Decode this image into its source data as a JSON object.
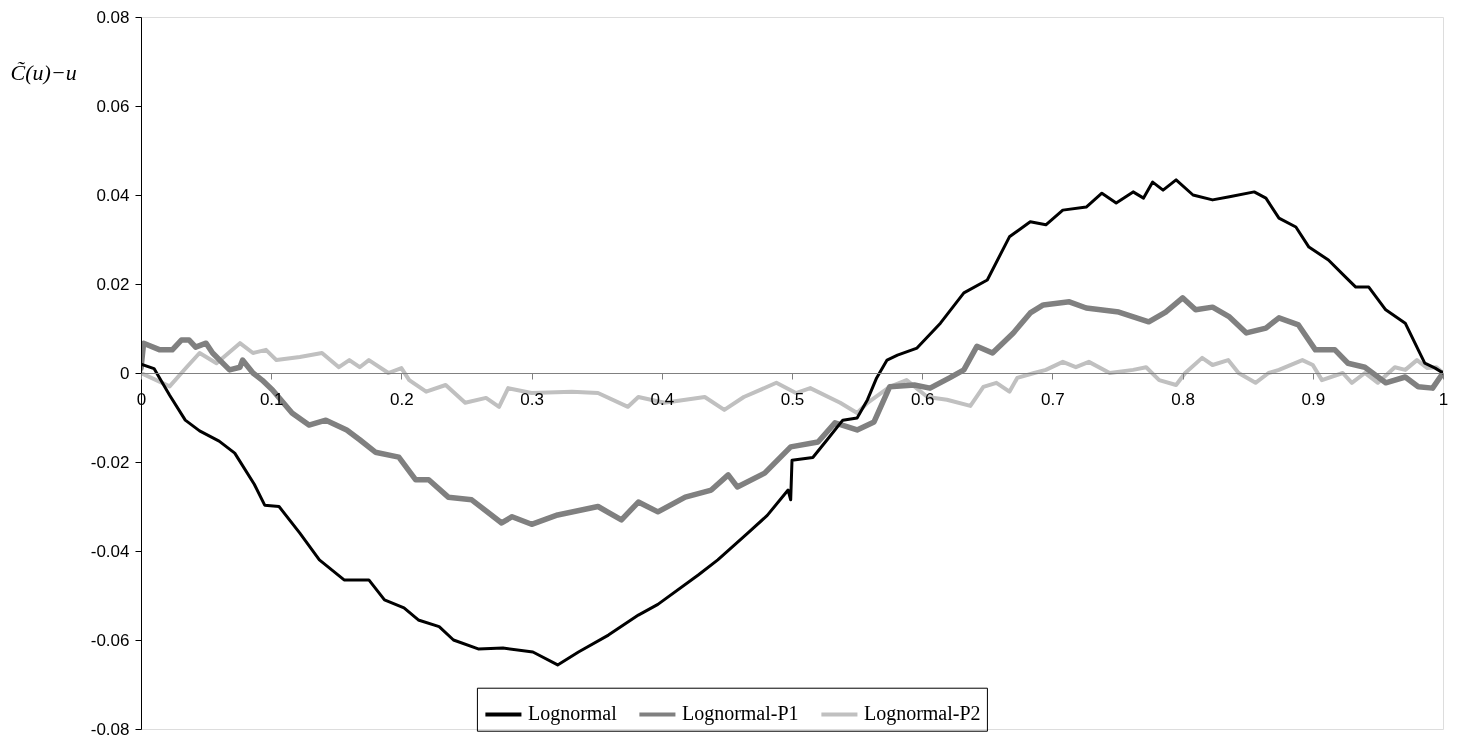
{
  "chart_data": {
    "type": "line",
    "ylabel": "C̃(u)−u",
    "xlim": [
      0,
      1
    ],
    "xticks": [
      0,
      0.1,
      0.2,
      0.3,
      0.4,
      0.5,
      0.6,
      0.7,
      0.8,
      0.9,
      1
    ],
    "ylim": [
      -0.08,
      0.08
    ],
    "yticks": [
      -0.08,
      -0.06,
      -0.04,
      -0.02,
      0,
      0.02,
      0.04,
      0.06,
      0.08
    ],
    "grid": false,
    "legend": "bottom",
    "series": [
      {
        "name": "Lognormal",
        "color": "#000000",
        "x": [
          0,
          0.01,
          0.022,
          0.034,
          0.045,
          0.06,
          0.072,
          0.087,
          0.095,
          0.106,
          0.122,
          0.137,
          0.156,
          0.175,
          0.187,
          0.202,
          0.213,
          0.229,
          0.24,
          0.259,
          0.278,
          0.301,
          0.32,
          0.336,
          0.359,
          0.382,
          0.397,
          0.428,
          0.443,
          0.466,
          0.481,
          0.497,
          0.499,
          0.5,
          0.516,
          0.527,
          0.539,
          0.55,
          0.558,
          0.565,
          0.573,
          0.581,
          0.596,
          0.614,
          0.632,
          0.65,
          0.667,
          0.683,
          0.695,
          0.708,
          0.726,
          0.738,
          0.749,
          0.762,
          0.77,
          0.777,
          0.785,
          0.795,
          0.808,
          0.823,
          0.836,
          0.855,
          0.864,
          0.874,
          0.887,
          0.897,
          0.912,
          0.925,
          0.933,
          0.943,
          0.956,
          0.971,
          0.981,
          0.986,
          0.994,
          1
        ],
        "values": [
          0.002,
          0.001,
          -0.005,
          -0.0106,
          -0.013,
          -0.0153,
          -0.018,
          -0.025,
          -0.0297,
          -0.03,
          -0.036,
          -0.042,
          -0.0465,
          -0.0465,
          -0.051,
          -0.0528,
          -0.0555,
          -0.057,
          -0.06,
          -0.062,
          -0.0618,
          -0.0627,
          -0.0656,
          -0.0627,
          -0.0589,
          -0.0544,
          -0.052,
          -0.0454,
          -0.042,
          -0.036,
          -0.032,
          -0.0263,
          -0.0285,
          -0.0196,
          -0.019,
          -0.015,
          -0.0106,
          -0.0101,
          -0.006,
          -0.0011,
          0.0029,
          0.004,
          0.0056,
          0.0112,
          0.018,
          0.0209,
          0.0306,
          0.034,
          0.0333,
          0.0366,
          0.0373,
          0.0404,
          0.0382,
          0.0407,
          0.0393,
          0.0429,
          0.0411,
          0.0434,
          0.04,
          0.0389,
          0.0396,
          0.0407,
          0.0393,
          0.0348,
          0.0328,
          0.0283,
          0.0254,
          0.0216,
          0.0193,
          0.0193,
          0.0142,
          0.0112,
          0.0052,
          0.0022,
          0.0011,
          0
        ]
      },
      {
        "name": "Lognormal-P1",
        "color": "#808080",
        "x": [
          0,
          0.002,
          0.0145,
          0.024,
          0.031,
          0.037,
          0.042,
          0.05,
          0.055,
          0.068,
          0.076,
          0.078,
          0.086,
          0.093,
          0.101,
          0.116,
          0.129,
          0.142,
          0.158,
          0.168,
          0.18,
          0.198,
          0.211,
          0.221,
          0.236,
          0.254,
          0.277,
          0.285,
          0.3,
          0.32,
          0.351,
          0.369,
          0.382,
          0.397,
          0.418,
          0.438,
          0.451,
          0.458,
          0.479,
          0.499,
          0.52,
          0.533,
          0.55,
          0.563,
          0.575,
          0.594,
          0.606,
          0.621,
          0.632,
          0.642,
          0.654,
          0.67,
          0.683,
          0.693,
          0.713,
          0.726,
          0.751,
          0.774,
          0.787,
          0.8,
          0.81,
          0.823,
          0.836,
          0.849,
          0.864,
          0.874,
          0.889,
          0.902,
          0.917,
          0.927,
          0.94,
          0.956,
          0.971,
          0.981,
          0.992,
          1
        ],
        "values": [
          0.001,
          0.0067,
          0.0052,
          0.0052,
          0.0074,
          0.0074,
          0.0058,
          0.0067,
          0.0045,
          0.0007,
          0.0013,
          0.0029,
          0,
          -0.0016,
          -0.0038,
          -0.009,
          -0.0117,
          -0.0106,
          -0.0128,
          -0.015,
          -0.0178,
          -0.0189,
          -0.024,
          -0.024,
          -0.0279,
          -0.0285,
          -0.0337,
          -0.0323,
          -0.034,
          -0.0319,
          -0.03,
          -0.033,
          -0.029,
          -0.0312,
          -0.0279,
          -0.0263,
          -0.0229,
          -0.0256,
          -0.0225,
          -0.0166,
          -0.0155,
          -0.0112,
          -0.0128,
          -0.011,
          -0.0031,
          -0.0027,
          -0.0034,
          -0.0011,
          0.0007,
          0.006,
          0.0045,
          0.009,
          0.0135,
          0.0153,
          0.016,
          0.0146,
          0.0137,
          0.0115,
          0.0137,
          0.0169,
          0.0142,
          0.0148,
          0.0126,
          0.009,
          0.0101,
          0.0124,
          0.0108,
          0.0052,
          0.0052,
          0.0022,
          0.0013,
          -0.0022,
          -0.0009,
          -0.0031,
          -0.0034,
          0
        ]
      },
      {
        "name": "Lognormal-P2",
        "color": "#c0c0c0",
        "x": [
          0,
          0.022,
          0.035,
          0.045,
          0.058,
          0.076,
          0.086,
          0.096,
          0.104,
          0.122,
          0.139,
          0.152,
          0.16,
          0.168,
          0.175,
          0.19,
          0.2,
          0.206,
          0.219,
          0.234,
          0.249,
          0.265,
          0.275,
          0.282,
          0.3,
          0.331,
          0.351,
          0.374,
          0.382,
          0.402,
          0.433,
          0.448,
          0.463,
          0.488,
          0.503,
          0.514,
          0.537,
          0.55,
          0.558,
          0.575,
          0.588,
          0.604,
          0.619,
          0.637,
          0.647,
          0.657,
          0.667,
          0.673,
          0.686,
          0.695,
          0.708,
          0.718,
          0.728,
          0.744,
          0.762,
          0.772,
          0.782,
          0.795,
          0.802,
          0.815,
          0.823,
          0.835,
          0.843,
          0.856,
          0.866,
          0.874,
          0.892,
          0.9,
          0.907,
          0.923,
          0.93,
          0.94,
          0.95,
          0.963,
          0.971,
          0.98,
          0.988,
          0.995,
          1
        ],
        "values": [
          0,
          -0.003,
          0.0013,
          0.0045,
          0.0022,
          0.0067,
          0.0045,
          0.0052,
          0.0029,
          0.0036,
          0.0045,
          0.0013,
          0.0029,
          0.0013,
          0.0029,
          0,
          0.0011,
          -0.0016,
          -0.0042,
          -0.0027,
          -0.0067,
          -0.0056,
          -0.0076,
          -0.0034,
          -0.0045,
          -0.0042,
          -0.0045,
          -0.0076,
          -0.0054,
          -0.0067,
          -0.0054,
          -0.0083,
          -0.0054,
          -0.0022,
          -0.0045,
          -0.0034,
          -0.0067,
          -0.009,
          -0.0067,
          -0.0031,
          -0.0016,
          -0.0054,
          -0.006,
          -0.0074,
          -0.0031,
          -0.0022,
          -0.0042,
          -0.0011,
          0,
          0.0007,
          0.0025,
          0.0013,
          0.0025,
          0,
          0.0007,
          0.0013,
          -0.0016,
          -0.0027,
          0,
          0.0034,
          0.0018,
          0.0029,
          0,
          -0.0022,
          0,
          0.0007,
          0.0029,
          0.0018,
          -0.0016,
          0,
          -0.0022,
          0,
          -0.0022,
          0.0013,
          0.0007,
          0.0029,
          0.0011,
          0.0013,
          0
        ]
      }
    ]
  }
}
